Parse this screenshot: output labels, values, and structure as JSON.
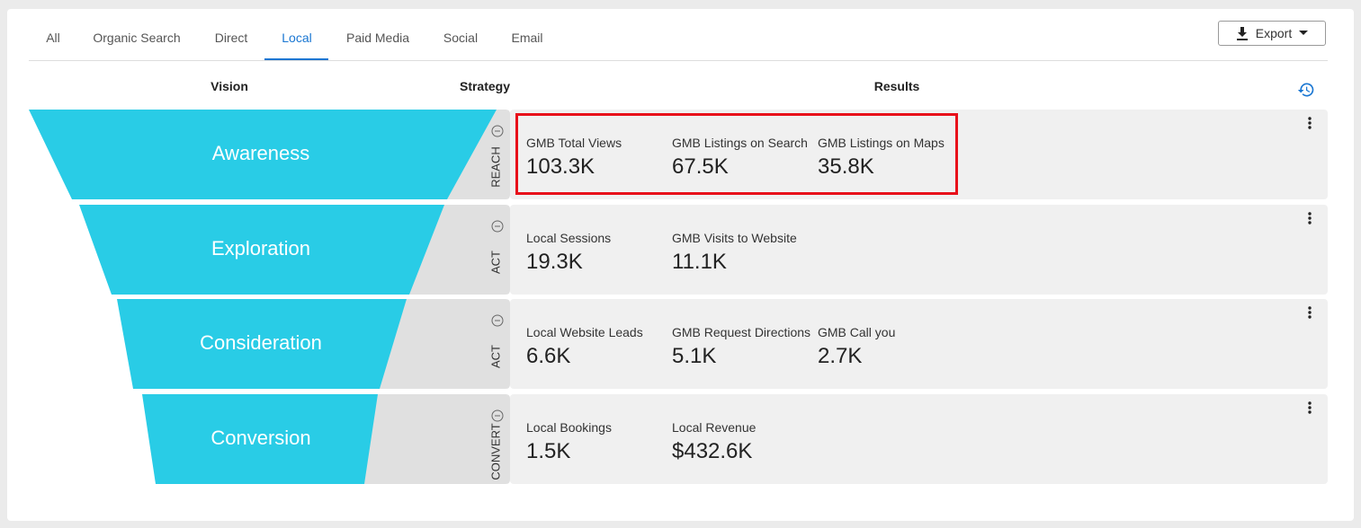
{
  "tabs": [
    "All",
    "Organic Search",
    "Direct",
    "Local",
    "Paid Media",
    "Social",
    "Email"
  ],
  "export": "Export",
  "columns": [
    "Vision",
    "Strategy",
    "Results"
  ],
  "stages": [
    {
      "vision": "Awareness",
      "strategy": "REACH",
      "metrics": [
        {
          "label": "GMB Total Views",
          "value": "103.3K"
        },
        {
          "label": "GMB Listings on Search",
          "value": "67.5K"
        },
        {
          "label": "GMB Listings on Maps",
          "value": "35.8K"
        }
      ]
    },
    {
      "vision": "Exploration",
      "strategy": "ACT",
      "metrics": [
        {
          "label": "Local Sessions",
          "value": "19.3K"
        },
        {
          "label": "GMB Visits to Website",
          "value": "11.1K"
        }
      ]
    },
    {
      "vision": "Consideration",
      "strategy": "ACT",
      "metrics": [
        {
          "label": "Local Website Leads",
          "value": "6.6K"
        },
        {
          "label": "GMB Request Directions",
          "value": "5.1K"
        },
        {
          "label": "GMB Call you",
          "value": "2.7K"
        }
      ]
    },
    {
      "vision": "Conversion",
      "strategy": "CONVERT",
      "metrics": [
        {
          "label": "Local Bookings",
          "value": "1.5K"
        },
        {
          "label": "Local Revenue",
          "value": "$432.6K"
        }
      ]
    }
  ]
}
